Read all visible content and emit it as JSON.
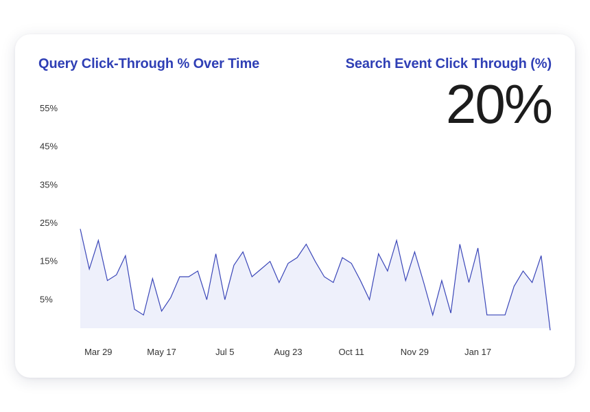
{
  "card": {
    "chart_title": "Query Click-Through % Over Time",
    "stat_title": "Search Event Click Through (%)",
    "stat_value": "20%"
  },
  "colors": {
    "title": "#2f3fb5",
    "line": "#3a46b8",
    "area": "#eef0fb",
    "value_text": "#1c1c1c"
  },
  "chart_data": {
    "type": "area",
    "ylim": [
      -3,
      60
    ],
    "yticks": [
      {
        "value": 55,
        "label": "55%"
      },
      {
        "value": 45,
        "label": "45%"
      },
      {
        "value": 35,
        "label": "35%"
      },
      {
        "value": 25,
        "label": "25%"
      },
      {
        "value": 15,
        "label": "15%"
      },
      {
        "value": 5,
        "label": "5%"
      }
    ],
    "xticks": [
      {
        "index": 2,
        "label": "Mar 29"
      },
      {
        "index": 9,
        "label": "May 17"
      },
      {
        "index": 16,
        "label": "Jul 5"
      },
      {
        "index": 23,
        "label": "Aug 23"
      },
      {
        "index": 30,
        "label": "Oct 11"
      },
      {
        "index": 37,
        "label": "Nov 29"
      },
      {
        "index": 44,
        "label": "Jan 17"
      }
    ],
    "grid": false,
    "series": [
      {
        "values": [
          23.5,
          13,
          20.5,
          10,
          11.5,
          16.5,
          2.5,
          1,
          10.5,
          2,
          5.5,
          11,
          11,
          12.5,
          5,
          17,
          5,
          14,
          17.5,
          11,
          13,
          15,
          9.5,
          14.5,
          16,
          19.5,
          15,
          11,
          9.5,
          16,
          14.5,
          10,
          5,
          17,
          12.5,
          20.5,
          10,
          17.5,
          9.5,
          1,
          10,
          1.5,
          19.5,
          9.5,
          18.5,
          1,
          1,
          1,
          8.5,
          12.5,
          9.5,
          16.5,
          -3
        ]
      }
    ]
  }
}
